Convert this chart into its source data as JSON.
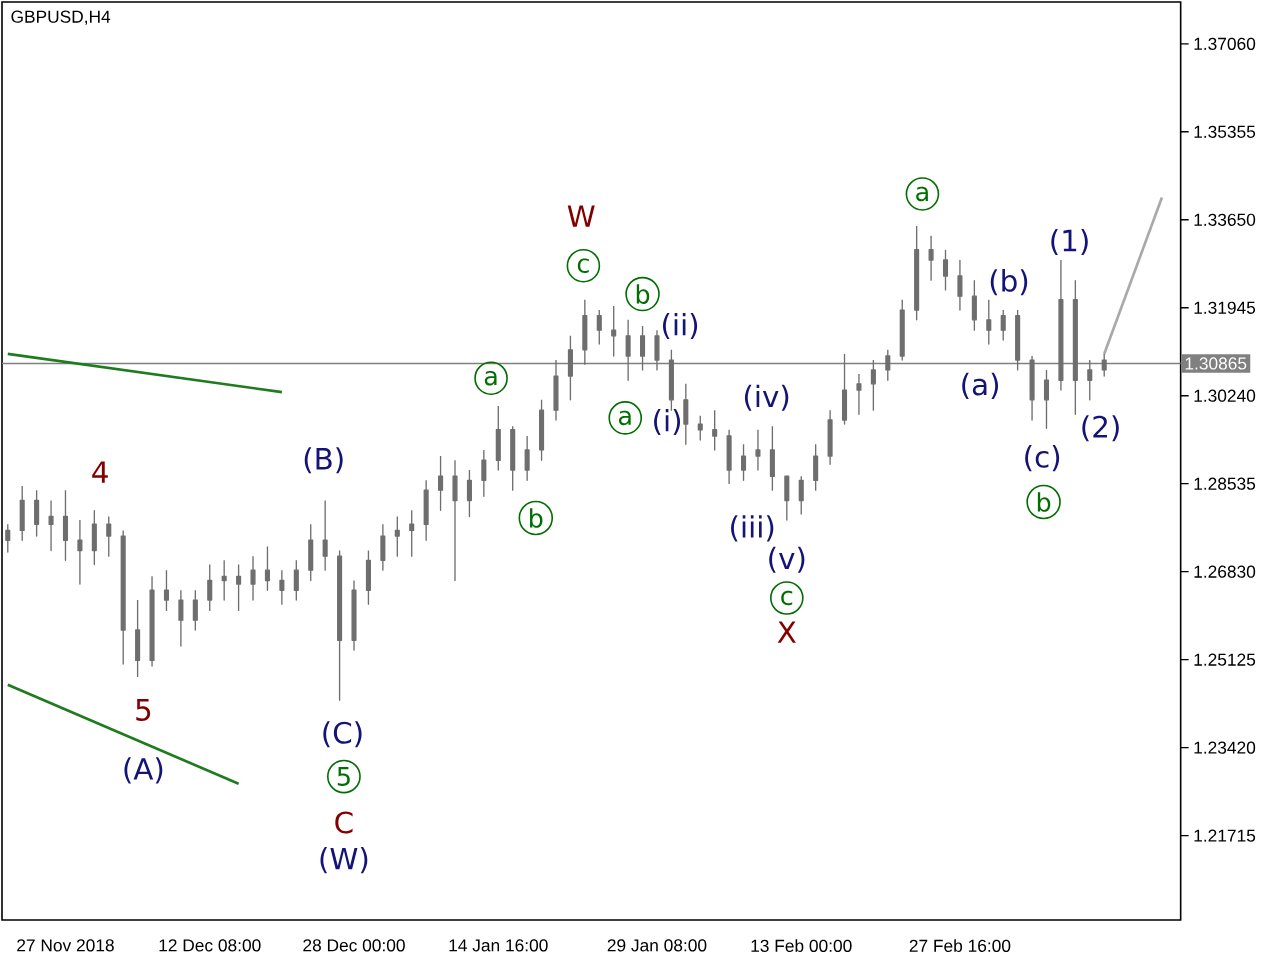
{
  "chart_data": {
    "type": "candlestick",
    "title": "GBPUSD,H4",
    "color": "#6e6e6e",
    "categories": [
      null,
      null,
      null,
      null,
      "27 Nov 2018",
      null,
      null,
      null,
      null,
      null,
      null,
      null,
      null,
      null,
      "12 Dec 08:00",
      null,
      null,
      null,
      null,
      null,
      null,
      null,
      null,
      null,
      "28 Dec 00:00",
      null,
      null,
      null,
      null,
      null,
      null,
      null,
      null,
      null,
      "14 Jan 16:00",
      null,
      null,
      null,
      null,
      null,
      null,
      null,
      null,
      null,
      null,
      "29 Jan 08:00",
      null,
      null,
      null,
      null,
      null,
      null,
      null,
      null,
      null,
      "13 Feb 00:00",
      null,
      null,
      null,
      null,
      null,
      null,
      null,
      null,
      null,
      null,
      "27 Feb 16:00",
      null,
      null,
      null,
      null,
      null,
      null,
      null,
      null,
      null,
      null,
      null,
      null,
      null,
      null
    ],
    "ohlc": [
      [
        1.2744,
        1.2775,
        1.2721,
        1.2763
      ],
      [
        1.2763,
        1.2849,
        1.2744,
        1.2821
      ],
      [
        1.2821,
        1.2841,
        1.2752,
        1.2775
      ],
      [
        1.2775,
        1.2821,
        1.2724,
        1.279
      ],
      [
        1.279,
        1.2841,
        1.2705,
        1.2744
      ],
      [
        1.2744,
        1.2783,
        1.2659,
        1.2724
      ],
      [
        1.2724,
        1.2802,
        1.2697,
        1.2775
      ],
      [
        1.2775,
        1.279,
        1.2713,
        1.2752
      ],
      [
        1.2752,
        1.2763,
        1.2504,
        1.257
      ],
      [
        1.257,
        1.2628,
        1.248,
        1.2511
      ],
      [
        1.2511,
        1.2674,
        1.25,
        1.2647
      ],
      [
        1.2647,
        1.2686,
        1.2608,
        1.2628
      ],
      [
        1.2628,
        1.2647,
        1.2539,
        1.2589
      ],
      [
        1.2589,
        1.2647,
        1.257,
        1.2628
      ],
      [
        1.2628,
        1.2697,
        1.2608,
        1.2666
      ],
      [
        1.2666,
        1.2705,
        1.2628,
        1.2674
      ],
      [
        1.2674,
        1.2697,
        1.2608,
        1.2659
      ],
      [
        1.2659,
        1.2713,
        1.2628,
        1.2686
      ],
      [
        1.2686,
        1.2732,
        1.2647,
        1.2666
      ],
      [
        1.2666,
        1.2686,
        1.262,
        1.2647
      ],
      [
        1.2647,
        1.2705,
        1.2628,
        1.2686
      ],
      [
        1.2686,
        1.2775,
        1.2666,
        1.2744
      ],
      [
        1.2744,
        1.2821,
        1.2686,
        1.2713
      ],
      [
        1.2713,
        1.2724,
        1.2434,
        1.255
      ],
      [
        1.255,
        1.2666,
        1.2531,
        1.2647
      ],
      [
        1.2647,
        1.2724,
        1.262,
        1.2705
      ],
      [
        1.2705,
        1.2775,
        1.2686,
        1.2752
      ],
      [
        1.2752,
        1.279,
        1.2713,
        1.2763
      ],
      [
        1.2763,
        1.2802,
        1.2713,
        1.2775
      ],
      [
        1.2775,
        1.286,
        1.2744,
        1.2841
      ],
      [
        1.2841,
        1.2907,
        1.2802,
        1.2868
      ],
      [
        1.2868,
        1.2899,
        1.2666,
        1.2821
      ],
      [
        1.2821,
        1.288,
        1.279,
        1.286
      ],
      [
        1.286,
        1.2919,
        1.2829,
        1.2899
      ],
      [
        1.2899,
        1.3004,
        1.288,
        1.2958
      ],
      [
        1.2958,
        1.2965,
        1.2841,
        1.288
      ],
      [
        1.288,
        1.2946,
        1.286,
        1.2919
      ],
      [
        1.2919,
        1.3016,
        1.2899,
        1.2996
      ],
      [
        1.2996,
        1.3093,
        1.2977,
        1.3062
      ],
      [
        1.3062,
        1.314,
        1.3016,
        1.3113
      ],
      [
        1.3113,
        1.321,
        1.3085,
        1.3179
      ],
      [
        1.3179,
        1.319,
        1.3124,
        1.3151
      ],
      [
        1.3151,
        1.3198,
        1.3101,
        1.314
      ],
      [
        1.314,
        1.3171,
        1.3054,
        1.3101
      ],
      [
        1.3101,
        1.3159,
        1.3074,
        1.314
      ],
      [
        1.314,
        1.3151,
        1.3074,
        1.3093
      ],
      [
        1.3093,
        1.3113,
        1.2996,
        1.3016
      ],
      [
        1.3016,
        1.3047,
        1.293,
        1.2969
      ],
      [
        1.2969,
        1.2985,
        1.2938,
        1.2958
      ],
      [
        1.2958,
        1.2996,
        1.2919,
        1.2946
      ],
      [
        1.2946,
        1.2958,
        1.2854,
        1.288
      ],
      [
        1.288,
        1.293,
        1.286,
        1.2907
      ],
      [
        1.2907,
        1.2958,
        1.288,
        1.2919
      ],
      [
        1.2919,
        1.2965,
        1.2841,
        1.2868
      ],
      [
        1.2868,
        1.2868,
        1.2783,
        1.2821
      ],
      [
        1.2821,
        1.2868,
        1.2795,
        1.286
      ],
      [
        1.286,
        1.293,
        1.2841,
        1.2907
      ],
      [
        1.2907,
        1.2996,
        1.2891,
        1.2977
      ],
      [
        1.2977,
        1.3105,
        1.2969,
        1.3035
      ],
      [
        1.3035,
        1.3066,
        1.2988,
        1.3047
      ],
      [
        1.3047,
        1.3093,
        1.2996,
        1.3074
      ],
      [
        1.3074,
        1.3113,
        1.3054,
        1.3101
      ],
      [
        1.3101,
        1.321,
        1.3093,
        1.319
      ],
      [
        1.319,
        1.3353,
        1.3171,
        1.3307
      ],
      [
        1.3307,
        1.3334,
        1.3248,
        1.3287
      ],
      [
        1.3287,
        1.3307,
        1.3229,
        1.3256
      ],
      [
        1.3256,
        1.3287,
        1.319,
        1.3217
      ],
      [
        1.3217,
        1.3248,
        1.3151,
        1.3171
      ],
      [
        1.3171,
        1.321,
        1.3124,
        1.3151
      ],
      [
        1.3151,
        1.319,
        1.3132,
        1.3179
      ],
      [
        1.3179,
        1.319,
        1.3074,
        1.3093
      ],
      [
        1.3093,
        1.3101,
        1.2977,
        1.3016
      ],
      [
        1.3016,
        1.3074,
        1.2961,
        1.3054
      ],
      [
        1.3054,
        1.3287,
        1.3035,
        1.321
      ],
      [
        1.321,
        1.3248,
        1.2988,
        1.3054
      ],
      [
        1.3054,
        1.3093,
        1.3016,
        1.3074
      ],
      [
        1.3074,
        1.3105,
        1.3062,
        1.3093
      ],
      null,
      null,
      null,
      null
    ],
    "series": [
      {
        "type": "line",
        "color": "#1e7b1e",
        "values": [
          1.3105,
          null,
          null,
          null,
          null,
          null,
          null,
          null,
          null,
          null,
          null,
          null,
          null,
          null,
          null,
          null,
          null,
          null,
          null,
          1.3031,
          null,
          null,
          null,
          null,
          null,
          null,
          null,
          null,
          null,
          null,
          null,
          null,
          null,
          null,
          null,
          null,
          null,
          null,
          null,
          null,
          null,
          null,
          null,
          null,
          null,
          null,
          null,
          null,
          null,
          null,
          null,
          null,
          null,
          null,
          null,
          null,
          null,
          null,
          null,
          null,
          null,
          null,
          null,
          null,
          null,
          null,
          null,
          null,
          null,
          null,
          null,
          null,
          null,
          null,
          null,
          null,
          null,
          null,
          null,
          null,
          null
        ]
      },
      {
        "type": "line",
        "color": "#1e7b1e",
        "values": [
          1.2464,
          null,
          null,
          null,
          null,
          null,
          null,
          null,
          null,
          null,
          null,
          null,
          null,
          null,
          null,
          null,
          1.2272,
          null,
          null,
          null,
          null,
          null,
          null,
          null,
          null,
          null,
          null,
          null,
          null,
          null,
          null,
          null,
          null,
          null,
          null,
          null,
          null,
          null,
          null,
          null,
          null,
          null,
          null,
          null,
          null,
          null,
          null,
          null,
          null,
          null,
          null,
          null,
          null,
          null,
          null,
          null,
          null,
          null,
          null,
          null,
          null,
          null,
          null,
          null,
          null,
          null,
          null,
          null,
          null,
          null,
          null,
          null,
          null,
          null,
          null,
          null,
          null,
          null,
          null,
          null,
          null
        ]
      },
      {
        "type": "line",
        "color": "#a9a9a9",
        "values": [
          null,
          null,
          null,
          null,
          null,
          null,
          null,
          null,
          null,
          null,
          null,
          null,
          null,
          null,
          null,
          null,
          null,
          null,
          null,
          null,
          null,
          null,
          null,
          null,
          null,
          null,
          null,
          null,
          null,
          null,
          null,
          null,
          null,
          null,
          null,
          null,
          null,
          null,
          null,
          null,
          null,
          null,
          null,
          null,
          null,
          null,
          null,
          null,
          null,
          null,
          null,
          null,
          null,
          null,
          null,
          null,
          null,
          null,
          null,
          null,
          null,
          null,
          null,
          null,
          null,
          null,
          null,
          null,
          null,
          null,
          null,
          null,
          null,
          null,
          null,
          null,
          1.3105,
          null,
          null,
          null,
          1.3408
        ]
      }
    ],
    "ylim": [
      1.2008,
      1.3787
    ],
    "yticks": [
      {
        "value": 1.3706,
        "label": "1.37060"
      },
      {
        "value": 1.35355,
        "label": "1.35355"
      },
      {
        "value": 1.3365,
        "label": "1.33650"
      },
      {
        "value": 1.31945,
        "label": "1.31945"
      },
      {
        "value": 1.3024,
        "label": "1.30240"
      },
      {
        "value": 1.28535,
        "label": "1.28535"
      },
      {
        "value": 1.2683,
        "label": "1.26830"
      },
      {
        "value": 1.25125,
        "label": "1.25125"
      },
      {
        "value": 1.2342,
        "label": "1.23420"
      },
      {
        "value": 1.21715,
        "label": "1.21715"
      }
    ],
    "ref_lines": [
      {
        "axis": "y",
        "value": 1.30865,
        "label": "1.30865",
        "color": "#808080"
      }
    ],
    "annotations": [
      "4",
      "5",
      "(A)",
      "(B)",
      "(C)",
      "5",
      "C",
      "(W)",
      "W",
      "c",
      "b",
      "(ii)",
      "a",
      "b",
      "a",
      "(i)",
      "(iv)",
      "(iii)",
      "(v)",
      "c",
      "X",
      "a",
      "(1)",
      "(b)",
      "(a)",
      "(c)",
      "(2)",
      "b"
    ]
  }
}
